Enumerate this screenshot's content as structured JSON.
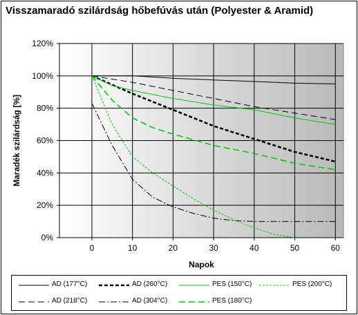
{
  "chart_data": {
    "type": "line",
    "title": "Visszamaradó szilárdság hőbefúvás után (Polyester & Aramid)",
    "xlabel": "Napok",
    "ylabel": "Maradék szilárdság [%]",
    "xlim": [
      -8,
      62
    ],
    "ylim": [
      0,
      120
    ],
    "xticks": [
      0,
      10,
      20,
      30,
      40,
      50,
      60
    ],
    "xtick_labels": [
      "0",
      "10",
      "20",
      "30",
      "40",
      "50",
      "60"
    ],
    "yticks": [
      0,
      20,
      40,
      60,
      80,
      100,
      120
    ],
    "ytick_labels": [
      "0%",
      "20%",
      "40%",
      "60%",
      "80%",
      "100%",
      "120%"
    ],
    "grid": true,
    "background": "gradient white-to-gray",
    "legend_position": "bottom",
    "series": [
      {
        "name": "AD (177°C)",
        "color": "#000000",
        "dash": "solid",
        "width": 1,
        "x": [
          0,
          5,
          10,
          20,
          30,
          40,
          50,
          60
        ],
        "y": [
          100,
          100,
          100,
          98.5,
          97.5,
          96.5,
          95.5,
          95
        ]
      },
      {
        "name": "AD (218°C)",
        "color": "#000000",
        "dash": "long",
        "width": 1,
        "x": [
          0,
          10,
          20,
          30,
          40,
          50,
          60
        ],
        "y": [
          100,
          96,
          91,
          86,
          81,
          77,
          73
        ]
      },
      {
        "name": "AD (260°C)",
        "color": "#000000",
        "dash": "short",
        "width": 2.6,
        "x": [
          0,
          10,
          20,
          30,
          40,
          50,
          60
        ],
        "y": [
          100,
          89,
          79,
          69,
          61,
          53,
          47
        ]
      },
      {
        "name": "AD (304°C)",
        "color": "#000000",
        "dash": "dashdot",
        "width": 1,
        "x": [
          0,
          5,
          10,
          15,
          20,
          25,
          30,
          35,
          40,
          45,
          50,
          55,
          60
        ],
        "y": [
          83,
          57,
          36,
          25,
          19,
          15,
          12,
          10.5,
          10,
          10,
          10,
          10,
          10
        ]
      },
      {
        "name": "PES (150°C)",
        "color": "#00cc00",
        "dash": "solid",
        "width": 1,
        "x": [
          0,
          5,
          10,
          20,
          30,
          40,
          50,
          60
        ],
        "y": [
          100,
          94,
          91,
          86,
          82,
          79,
          74,
          70
        ]
      },
      {
        "name": "PES (180°C)",
        "color": "#00cc00",
        "dash": "long",
        "width": 1.6,
        "x": [
          0,
          5,
          10,
          15,
          20,
          30,
          40,
          50,
          60
        ],
        "y": [
          100,
          85,
          74,
          68,
          64,
          57,
          52,
          46,
          42
        ]
      },
      {
        "name": "PES (200°C)",
        "color": "#00cc00",
        "dash": "dotted",
        "width": 1,
        "x": [
          0,
          5,
          10,
          15,
          20,
          25,
          30,
          35,
          40,
          45,
          50
        ],
        "y": [
          100,
          70,
          50,
          40,
          32,
          24,
          17,
          11,
          6,
          2,
          0
        ]
      }
    ]
  },
  "legend_items": [
    {
      "label": "AD (177°C)",
      "series_index": 0
    },
    {
      "label": "AD (260°C)",
      "series_index": 2
    },
    {
      "label": "PES (150°C)",
      "series_index": 4
    },
    {
      "label": "PES (200°C)",
      "series_index": 6
    },
    {
      "label": "AD (218°C)",
      "series_index": 1
    },
    {
      "label": "AD (304°C)",
      "series_index": 3
    },
    {
      "label": "PES (180°C)",
      "series_index": 5
    }
  ]
}
